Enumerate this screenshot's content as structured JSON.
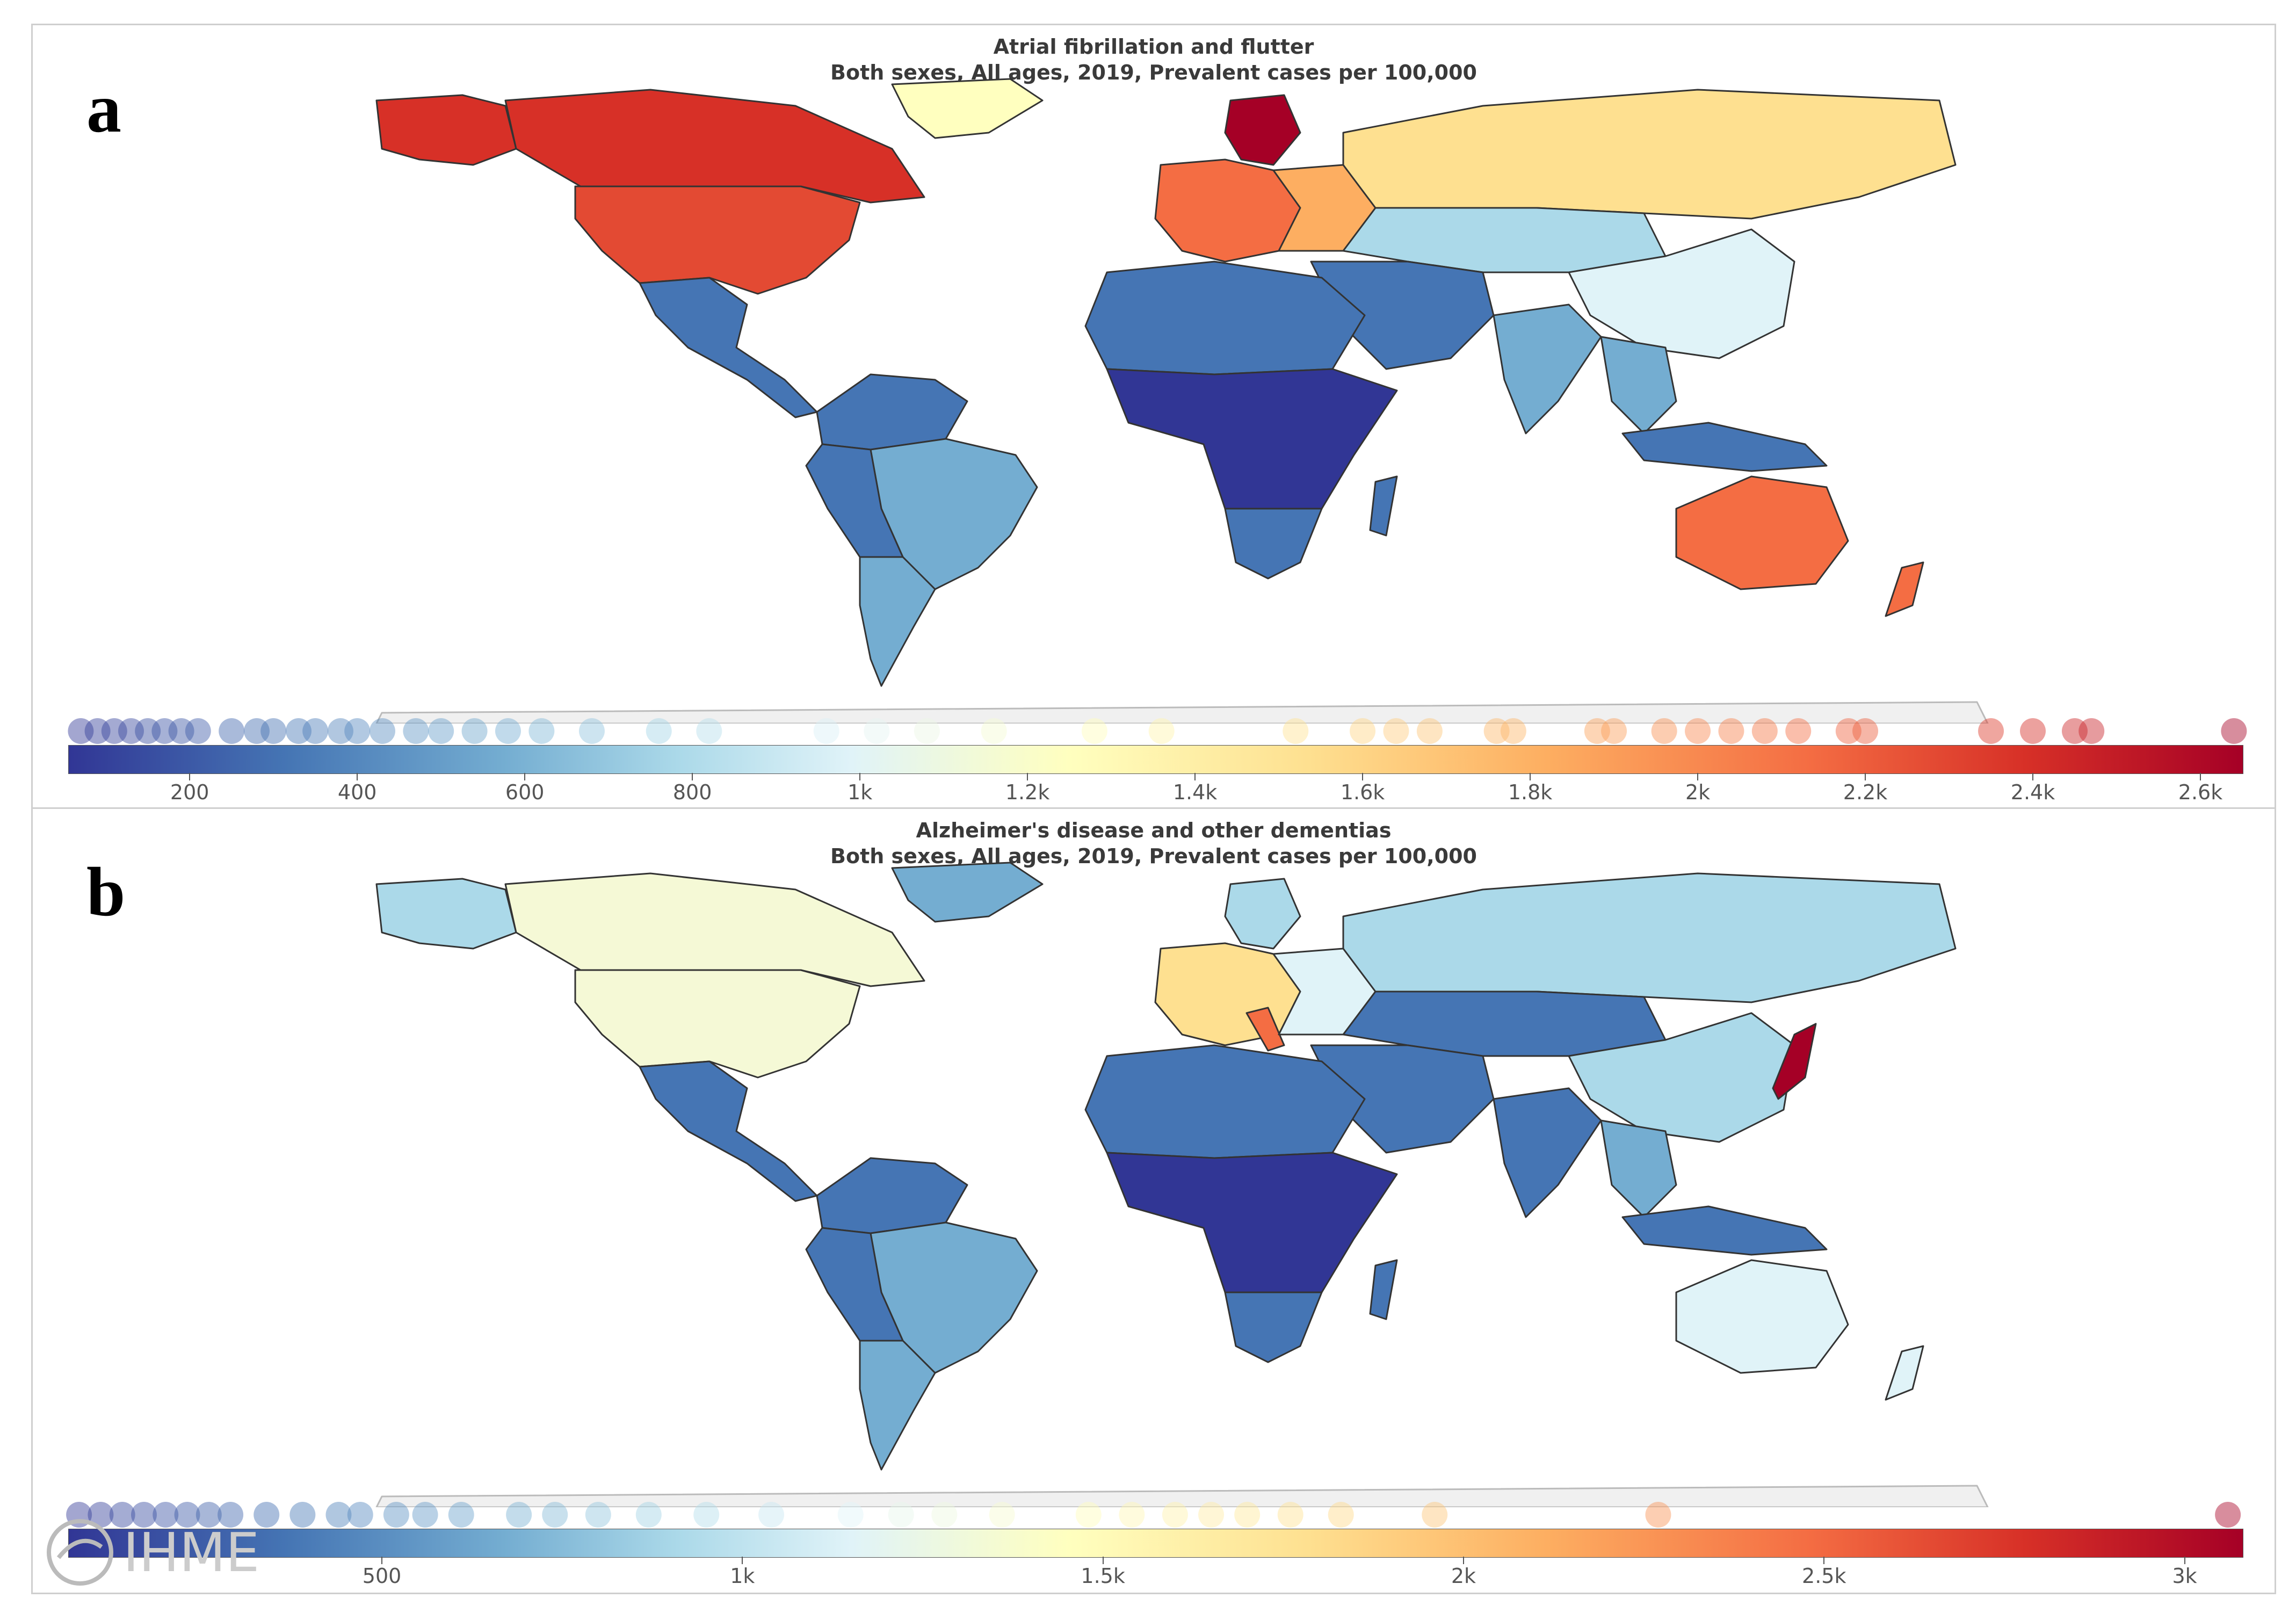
{
  "panels": {
    "a": {
      "letter": "a",
      "title_line1": "Atrial fibrillation and flutter",
      "title_line2": "Both sexes, All ages, 2019, Prevalent cases per 100,000",
      "colorbar_ticks": [
        "200",
        "400",
        "600",
        "800",
        "1k",
        "1.2k",
        "1.4k",
        "1.6k",
        "1.8k",
        "2k",
        "2.2k",
        "2.4k",
        "2.6k"
      ],
      "tick_values": [
        200,
        400,
        600,
        800,
        1000,
        1200,
        1400,
        1600,
        1800,
        2000,
        2200,
        2400,
        2600
      ],
      "scale_min": 55,
      "scale_max": 2650,
      "country_values": [
        70,
        90,
        110,
        130,
        150,
        170,
        190,
        210,
        250,
        280,
        300,
        330,
        350,
        380,
        400,
        430,
        470,
        500,
        540,
        580,
        620,
        680,
        760,
        820,
        960,
        1020,
        1080,
        1160,
        1280,
        1360,
        1520,
        1600,
        1640,
        1680,
        1760,
        1780,
        1880,
        1900,
        1960,
        2000,
        2040,
        2080,
        2120,
        2180,
        2200,
        2350,
        2400,
        2450,
        2470,
        2640
      ]
    },
    "b": {
      "letter": "b",
      "title_line1": "Alzheimer's disease and other dementias",
      "title_line2": "Both sexes, All ages, 2019, Prevalent cases per 100,000",
      "colorbar_ticks": [
        "500",
        "1k",
        "1.5k",
        "2k",
        "2.5k",
        "3k"
      ],
      "tick_values": [
        500,
        1000,
        1500,
        2000,
        2500,
        3000
      ],
      "scale_min": 65,
      "scale_max": 3080,
      "country_values": [
        80,
        110,
        140,
        170,
        200,
        230,
        260,
        290,
        340,
        390,
        440,
        470,
        520,
        560,
        610,
        690,
        740,
        800,
        870,
        950,
        1040,
        1150,
        1220,
        1280,
        1360,
        1480,
        1540,
        1600,
        1650,
        1700,
        1760,
        1830,
        1960,
        2270,
        3060
      ]
    }
  },
  "colors": {
    "dark_blue": "#313695",
    "blue": "#4575b4",
    "mid_blue": "#74add1",
    "light_blue": "#abd9e9",
    "pale_blue": "#e0f3f8",
    "pale_yellow": "#ffffbf",
    "light_orange": "#fee090",
    "orange": "#fdae61",
    "dark_orange": "#f46d43",
    "red": "#d73027",
    "dark_red": "#a50026"
  },
  "watermark": "IHME"
}
